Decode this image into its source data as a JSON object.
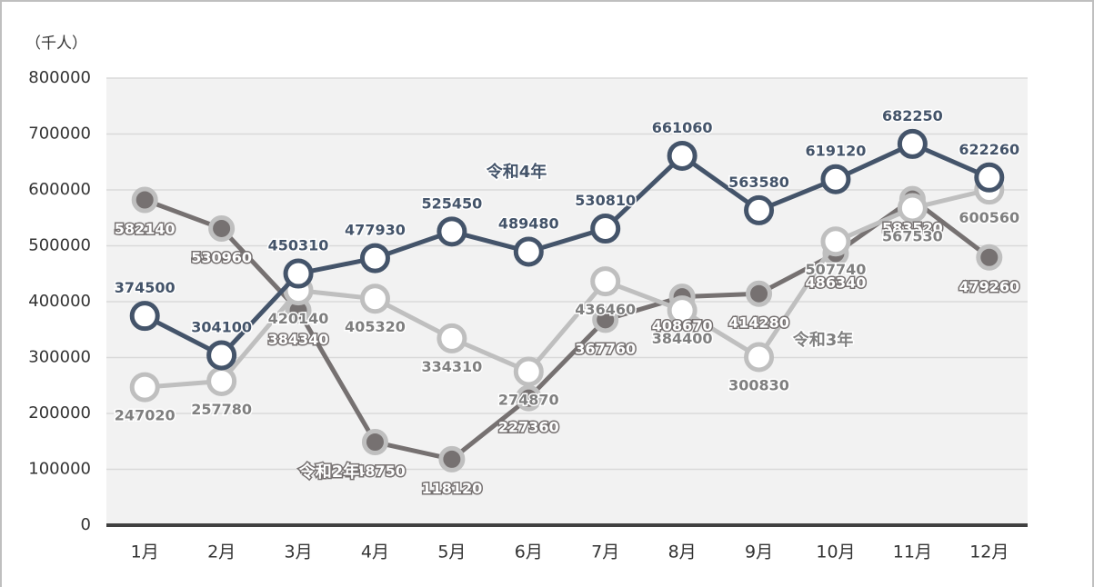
{
  "chart_data": {
    "type": "line",
    "y_unit_label": "（千人）",
    "categories": [
      "1月",
      "2月",
      "3月",
      "4月",
      "5月",
      "6月",
      "7月",
      "8月",
      "9月",
      "10月",
      "11月",
      "12月"
    ],
    "series": [
      {
        "name": "令和2年",
        "color": "#767171",
        "values": [
          582140,
          530960,
          384340,
          148750,
          118120,
          227360,
          367760,
          408670,
          414280,
          486340,
          583520,
          479260
        ]
      },
      {
        "name": "令和3年",
        "color": "#bfbfbf",
        "values": [
          247020,
          257780,
          420140,
          405320,
          334310,
          274870,
          436460,
          384400,
          300830,
          507740,
          567530,
          600560
        ]
      },
      {
        "name": "令和4年",
        "color": "#44546a",
        "values": [
          374500,
          304100,
          450310,
          477930,
          525450,
          489480,
          530810,
          661060,
          563580,
          619120,
          682250,
          622260
        ]
      }
    ],
    "ylim": [
      0,
      800000
    ],
    "yticks": [
      0,
      100000,
      200000,
      300000,
      400000,
      500000,
      600000,
      700000,
      800000
    ],
    "grid": true
  }
}
